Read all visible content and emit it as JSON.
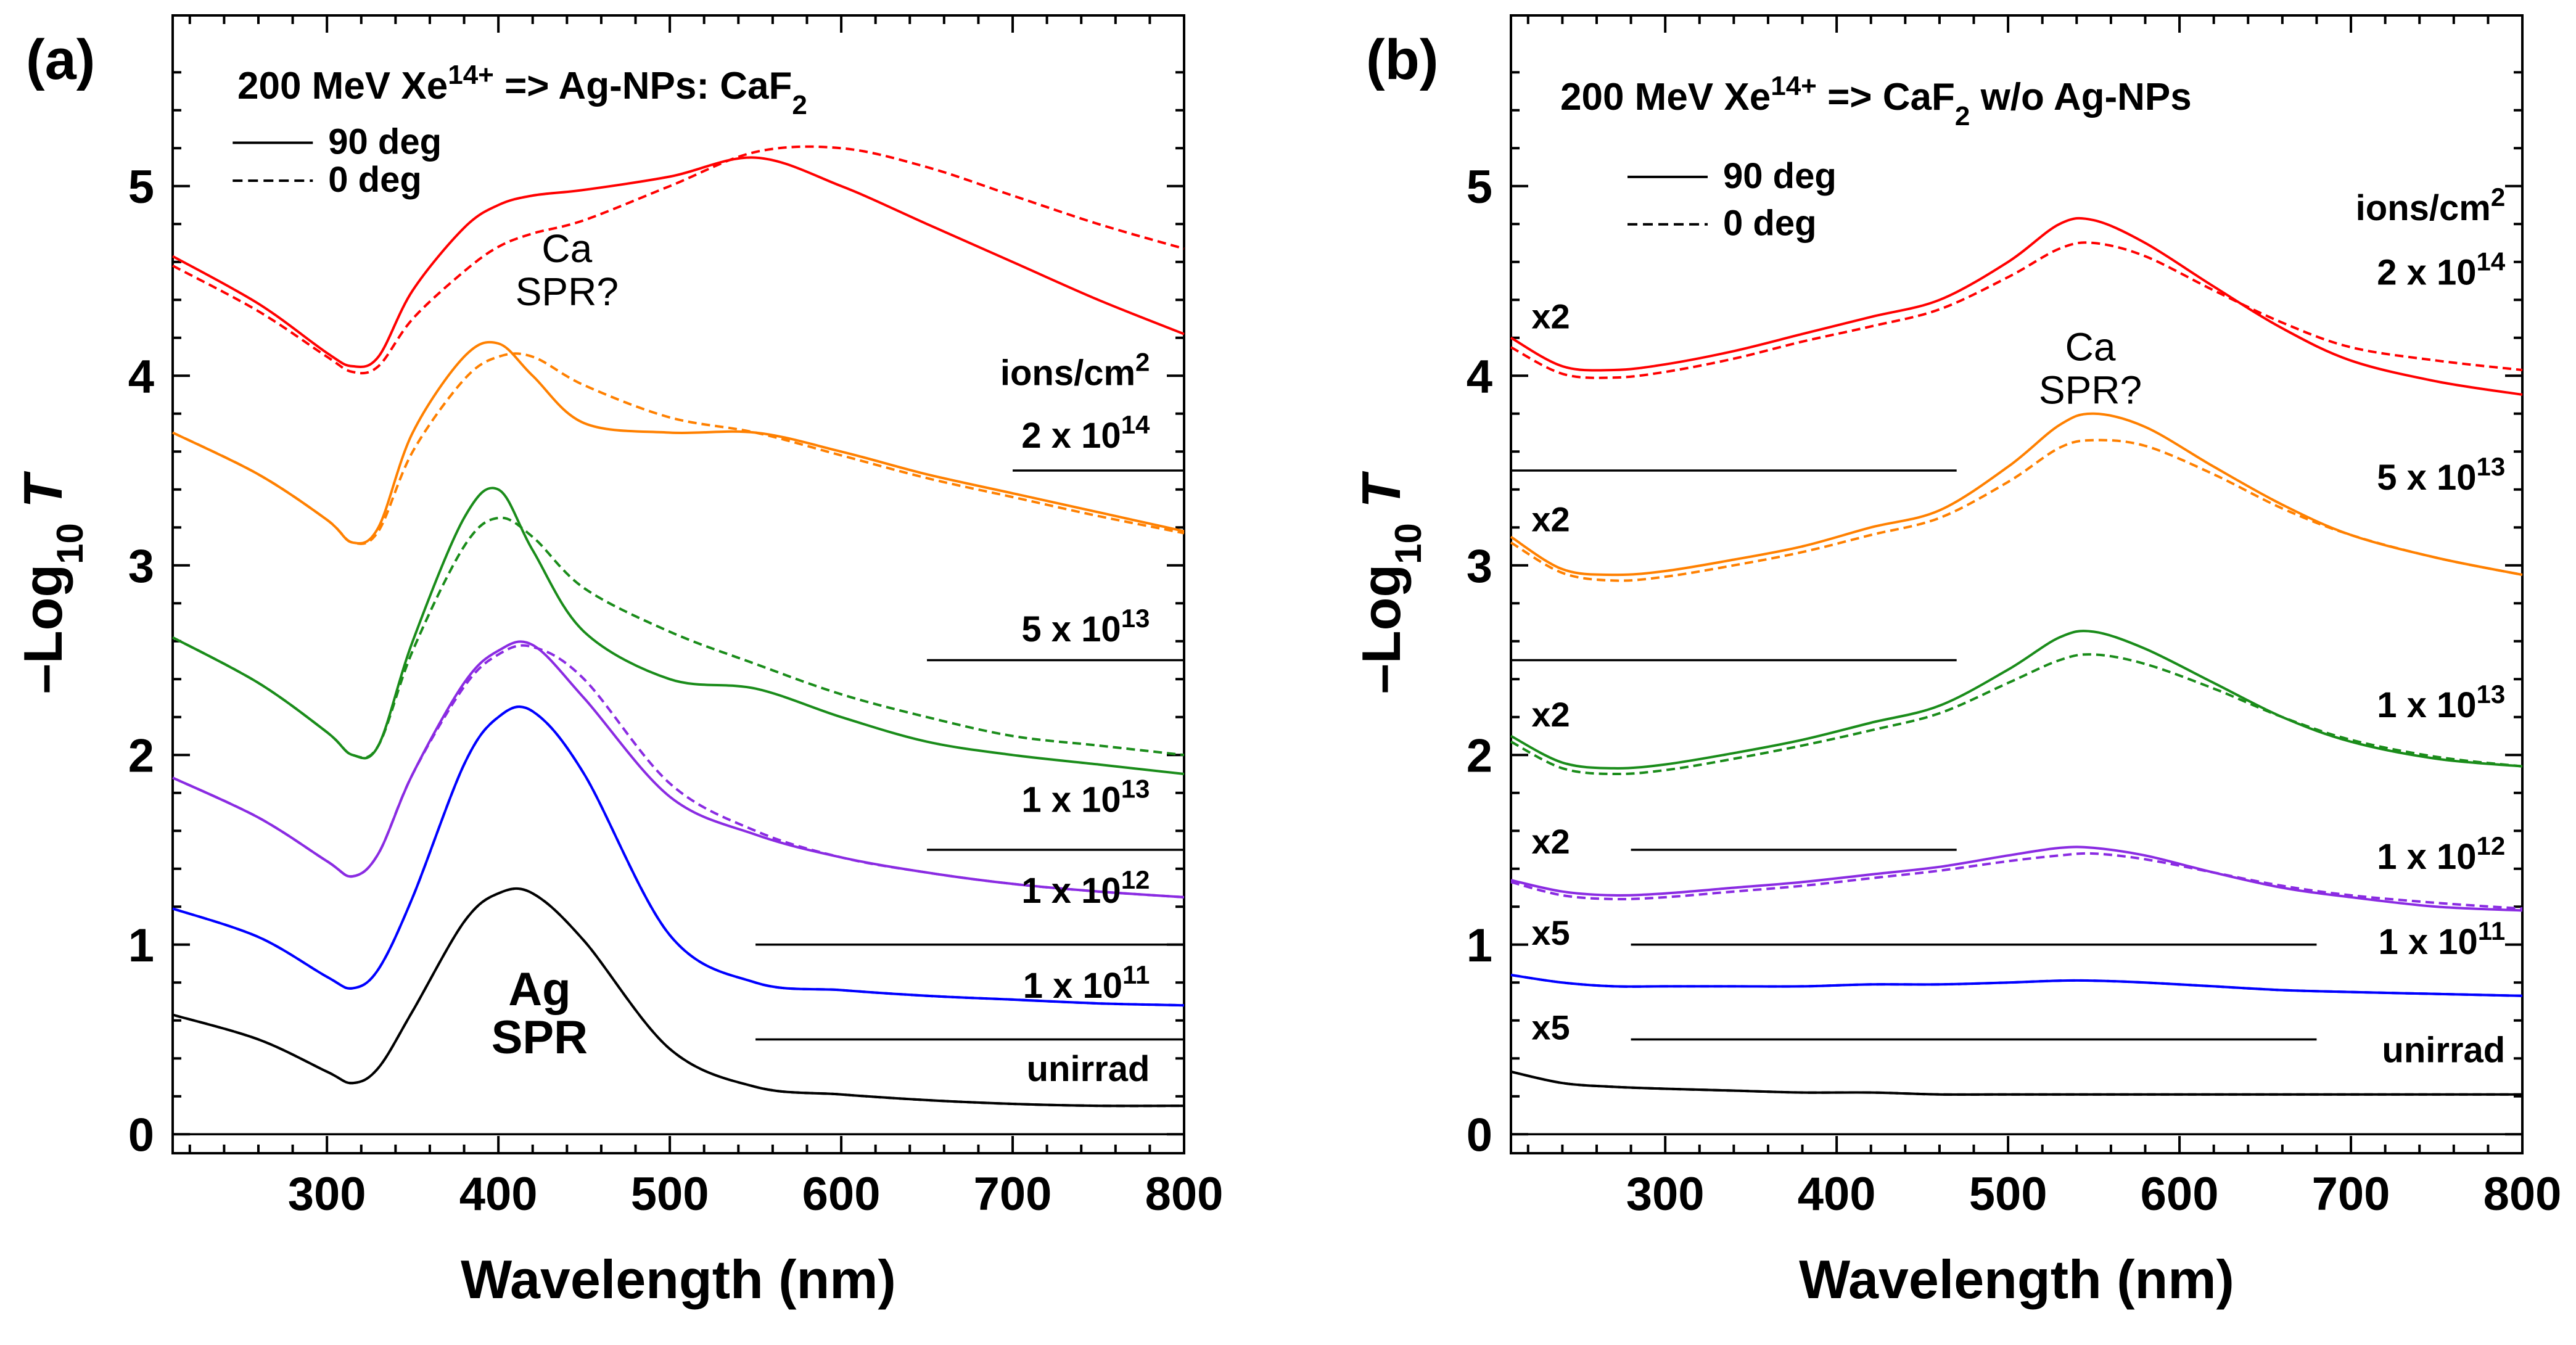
{
  "figure": {
    "panels": [
      {
        "id": "a",
        "letter": "(a)",
        "title_parts": {
          "pre": "200 MeV Xe",
          "sup": "14+",
          "mid": " => Ag-NPs: CaF",
          "sub": "2",
          "post": ""
        },
        "legend": {
          "solid": "90 deg",
          "dashed": "0 deg"
        },
        "xlabel": "Wavelength (nm)",
        "ylabel_parts": {
          "pre": "–Log",
          "sub": "10",
          "var": "T"
        },
        "units_label": {
          "pre": "ions/cm",
          "sup": "2"
        },
        "annotations": [
          {
            "name": "ca-spr-label",
            "lines": [
              "Ca",
              "SPR?"
            ],
            "style": "normal"
          },
          {
            "name": "ag-spr-label",
            "lines": [
              "Ag",
              "SPR"
            ],
            "style": "bold"
          }
        ]
      },
      {
        "id": "b",
        "letter": "(b)",
        "title_parts": {
          "pre": "200 MeV Xe",
          "sup": "14+",
          "mid": " => CaF",
          "sub": "2",
          "post": " w/o Ag-NPs"
        },
        "legend": {
          "solid": "90 deg",
          "dashed": "0 deg"
        },
        "xlabel": "Wavelength (nm)",
        "ylabel_parts": {
          "pre": "–Log",
          "sub": "10",
          "var": "T"
        },
        "units_label": {
          "pre": "ions/cm",
          "sup": "2"
        },
        "annotations": [
          {
            "name": "ca-spr-label",
            "lines": [
              "Ca",
              "SPR?"
            ],
            "style": "normal"
          }
        ]
      }
    ]
  },
  "chart_data": [
    {
      "type": "line",
      "panel": "a",
      "title": "200 MeV Xe14+ => Ag-NPs: CaF2",
      "xlabel": "Wavelength (nm)",
      "ylabel": "-Log10 T",
      "xlim": [
        210,
        800
      ],
      "ylim": [
        -0.1,
        5.9
      ],
      "xticks": [
        300,
        400,
        500,
        600,
        700,
        800
      ],
      "yticks": [
        0,
        1,
        2,
        3,
        4,
        5
      ],
      "x": [
        210,
        260,
        300,
        315,
        330,
        350,
        380,
        400,
        420,
        450,
        500,
        550,
        600,
        650,
        700,
        750,
        800
      ],
      "series": [
        {
          "name": "unirrad",
          "fluence": "unirrad",
          "color": "#000000",
          "solid": [
            0.63,
            0.5,
            0.33,
            0.27,
            0.35,
            0.65,
            1.12,
            1.27,
            1.27,
            1.02,
            0.45,
            0.25,
            0.21,
            0.18,
            0.16,
            0.15,
            0.15
          ],
          "dashed": [
            0.63,
            0.5,
            0.33,
            0.27,
            0.35,
            0.65,
            1.12,
            1.27,
            1.27,
            1.02,
            0.45,
            0.25,
            0.21,
            0.18,
            0.16,
            0.15,
            0.15
          ]
        },
        {
          "name": "1e11",
          "fluence": {
            "pre": "1 x 10",
            "sup": "11"
          },
          "color": "#0000ff",
          "solid": [
            1.19,
            1.04,
            0.83,
            0.77,
            0.87,
            1.25,
            1.95,
            2.2,
            2.23,
            1.9,
            1.05,
            0.8,
            0.76,
            0.73,
            0.71,
            0.69,
            0.68
          ],
          "dashed": [
            1.19,
            1.04,
            0.83,
            0.77,
            0.87,
            1.25,
            1.95,
            2.2,
            2.23,
            1.9,
            1.05,
            0.8,
            0.76,
            0.73,
            0.71,
            0.69,
            0.68
          ]
        },
        {
          "name": "1e12",
          "fluence": {
            "pre": "1 x 10",
            "sup": "12"
          },
          "color": "#8a2be2",
          "solid": [
            1.88,
            1.67,
            1.44,
            1.36,
            1.48,
            1.9,
            2.38,
            2.55,
            2.58,
            2.3,
            1.78,
            1.58,
            1.46,
            1.38,
            1.32,
            1.28,
            1.25
          ],
          "dashed": [
            1.88,
            1.67,
            1.44,
            1.36,
            1.48,
            1.9,
            2.36,
            2.53,
            2.57,
            2.4,
            1.85,
            1.6,
            1.46,
            1.38,
            1.32,
            1.28,
            1.25
          ]
        },
        {
          "name": "1e13",
          "fluence": {
            "pre": "1 x 10",
            "sup": "13"
          },
          "color": "#1a8c1a",
          "solid": [
            2.62,
            2.38,
            2.12,
            2.0,
            2.05,
            2.6,
            3.25,
            3.4,
            3.08,
            2.65,
            2.4,
            2.35,
            2.2,
            2.07,
            2.0,
            1.95,
            1.9
          ],
          "dashed": [
            2.62,
            2.38,
            2.12,
            2.0,
            2.05,
            2.55,
            3.1,
            3.25,
            3.15,
            2.88,
            2.65,
            2.48,
            2.32,
            2.2,
            2.1,
            2.05,
            2.0
          ]
        },
        {
          "name": "5e13",
          "fluence": {
            "pre": "5 x 10",
            "sup": "13"
          },
          "color": "#ff8000",
          "solid": [
            3.7,
            3.48,
            3.24,
            3.12,
            3.2,
            3.7,
            4.1,
            4.17,
            4.0,
            3.75,
            3.7,
            3.7,
            3.6,
            3.48,
            3.38,
            3.28,
            3.18
          ],
          "dashed": [
            3.7,
            3.48,
            3.24,
            3.12,
            3.18,
            3.6,
            3.98,
            4.1,
            4.1,
            3.95,
            3.78,
            3.7,
            3.58,
            3.46,
            3.36,
            3.26,
            3.17
          ]
        },
        {
          "name": "2e14",
          "fluence": {
            "pre": "2 x 10",
            "sup": "14"
          },
          "color": "#ff0000",
          "solid": [
            4.63,
            4.38,
            4.12,
            4.05,
            4.1,
            4.45,
            4.78,
            4.9,
            4.95,
            4.98,
            5.05,
            5.15,
            5.0,
            4.8,
            4.6,
            4.4,
            4.22
          ],
          "dashed": [
            4.58,
            4.34,
            4.1,
            4.02,
            4.05,
            4.3,
            4.55,
            4.68,
            4.75,
            4.82,
            5.0,
            5.18,
            5.2,
            5.1,
            4.95,
            4.8,
            4.67
          ]
        }
      ],
      "baselines": [
        0,
        0.5,
        1.0,
        1.5,
        2.5,
        3.5
      ],
      "baseline_starts": [
        210,
        550,
        550,
        650,
        650,
        700
      ]
    },
    {
      "type": "line",
      "panel": "b",
      "title": "200 MeV Xe14+ => CaF2 w/o Ag-NPs",
      "xlabel": "Wavelength (nm)",
      "ylabel": "-Log10 T",
      "xlim": [
        210,
        800
      ],
      "ylim": [
        -0.1,
        5.9
      ],
      "xticks": [
        300,
        400,
        500,
        600,
        700,
        800
      ],
      "yticks": [
        0,
        1,
        2,
        3,
        4,
        5
      ],
      "x": [
        210,
        240,
        270,
        300,
        340,
        380,
        420,
        460,
        500,
        530,
        550,
        580,
        620,
        660,
        700,
        750,
        800
      ],
      "series": [
        {
          "name": "unirrad",
          "fluence": "unirrad",
          "multiplier": "x5",
          "color": "#000000",
          "solid": [
            0.33,
            0.27,
            0.25,
            0.24,
            0.23,
            0.22,
            0.22,
            0.21,
            0.21,
            0.21,
            0.21,
            0.21,
            0.21,
            0.21,
            0.21,
            0.21,
            0.21
          ],
          "dashed": [
            0.33,
            0.27,
            0.25,
            0.24,
            0.23,
            0.22,
            0.22,
            0.21,
            0.21,
            0.21,
            0.21,
            0.21,
            0.21,
            0.21,
            0.21,
            0.21,
            0.21
          ]
        },
        {
          "name": "1e11",
          "fluence": {
            "pre": "1 x 10",
            "sup": "11"
          },
          "multiplier": "x5",
          "color": "#0000ff",
          "solid": [
            0.84,
            0.8,
            0.78,
            0.78,
            0.78,
            0.78,
            0.79,
            0.79,
            0.8,
            0.81,
            0.81,
            0.8,
            0.78,
            0.76,
            0.75,
            0.74,
            0.73
          ],
          "dashed": [
            0.84,
            0.8,
            0.78,
            0.78,
            0.78,
            0.78,
            0.79,
            0.79,
            0.8,
            0.81,
            0.81,
            0.8,
            0.78,
            0.76,
            0.75,
            0.74,
            0.73
          ]
        },
        {
          "name": "1e12",
          "fluence": {
            "pre": "1 x 10",
            "sup": "12"
          },
          "multiplier": "x2",
          "color": "#8a2be2",
          "solid": [
            1.34,
            1.28,
            1.26,
            1.27,
            1.3,
            1.33,
            1.37,
            1.41,
            1.47,
            1.51,
            1.51,
            1.47,
            1.38,
            1.3,
            1.25,
            1.2,
            1.18
          ],
          "dashed": [
            1.33,
            1.26,
            1.24,
            1.25,
            1.28,
            1.31,
            1.35,
            1.39,
            1.44,
            1.47,
            1.48,
            1.45,
            1.38,
            1.31,
            1.26,
            1.22,
            1.19
          ]
        },
        {
          "name": "1e13",
          "fluence": {
            "pre": "1 x 10",
            "sup": "13"
          },
          "multiplier": "x2",
          "color": "#1a8c1a",
          "solid": [
            2.1,
            1.96,
            1.93,
            1.95,
            2.01,
            2.08,
            2.17,
            2.26,
            2.45,
            2.62,
            2.65,
            2.56,
            2.38,
            2.2,
            2.07,
            1.98,
            1.94
          ],
          "dashed": [
            2.07,
            1.93,
            1.9,
            1.92,
            1.98,
            2.05,
            2.13,
            2.22,
            2.38,
            2.5,
            2.53,
            2.48,
            2.35,
            2.2,
            2.08,
            1.99,
            1.94
          ]
        },
        {
          "name": "5e13",
          "fluence": {
            "pre": "5 x 10",
            "sup": "13"
          },
          "multiplier": "x2",
          "color": "#ff8000",
          "solid": [
            3.15,
            2.98,
            2.95,
            2.97,
            3.03,
            3.1,
            3.2,
            3.29,
            3.52,
            3.74,
            3.8,
            3.73,
            3.52,
            3.32,
            3.16,
            3.04,
            2.95
          ],
          "dashed": [
            3.12,
            2.96,
            2.92,
            2.94,
            3.0,
            3.07,
            3.16,
            3.25,
            3.44,
            3.62,
            3.66,
            3.63,
            3.48,
            3.3,
            3.16,
            3.04,
            2.95
          ]
        },
        {
          "name": "2e14",
          "fluence": {
            "pre": "2 x 10",
            "sup": "14"
          },
          "multiplier": "x2",
          "color": "#ff0000",
          "solid": [
            4.2,
            4.05,
            4.03,
            4.06,
            4.13,
            4.22,
            4.31,
            4.4,
            4.6,
            4.8,
            4.82,
            4.7,
            4.47,
            4.25,
            4.08,
            3.97,
            3.9
          ],
          "dashed": [
            4.15,
            4.01,
            3.99,
            4.02,
            4.09,
            4.18,
            4.26,
            4.35,
            4.52,
            4.67,
            4.7,
            4.63,
            4.45,
            4.28,
            4.15,
            4.08,
            4.03
          ]
        }
      ],
      "baselines": [
        0,
        0.5,
        1.0,
        1.5,
        2.5,
        3.5
      ],
      "baseline_ranges": [
        [
          210,
          800
        ],
        [
          280,
          680
        ],
        [
          280,
          680
        ],
        [
          280,
          470
        ],
        [
          210,
          470
        ],
        [
          210,
          470
        ]
      ]
    }
  ]
}
